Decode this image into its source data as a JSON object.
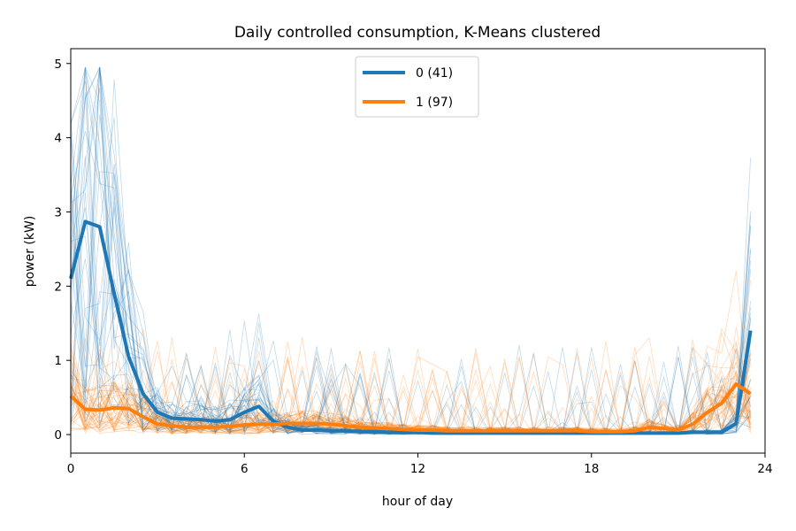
{
  "chart_data": {
    "type": "line",
    "title": "Daily controlled consumption, K-Means clustered",
    "xlabel": "hour of day",
    "ylabel": "power (kW)",
    "xlim": [
      0,
      24
    ],
    "ylim": [
      -0.25,
      5.2
    ],
    "xticks": [
      0,
      6,
      12,
      18,
      24
    ],
    "xtick_labels": [
      "0",
      "6",
      "12",
      "18",
      "24"
    ],
    "yticks": [
      0,
      1,
      2,
      3,
      4,
      5
    ],
    "ytick_labels": [
      "0",
      "1",
      "2",
      "3",
      "4",
      "5"
    ],
    "grid": false,
    "legend_position": "top-center",
    "colors": {
      "cluster_0": "#1f77b4",
      "cluster_1": "#ff7f0e"
    },
    "x": [
      0,
      0.5,
      1,
      1.5,
      2,
      2.5,
      3,
      3.5,
      4,
      4.5,
      5,
      5.5,
      6,
      6.5,
      7,
      7.5,
      8,
      8.5,
      9,
      9.5,
      10,
      10.5,
      11,
      11.5,
      12,
      12.5,
      13,
      13.5,
      14,
      14.5,
      15,
      15.5,
      16,
      16.5,
      17,
      17.5,
      18,
      18.5,
      19,
      19.5,
      20,
      20.5,
      21,
      21.5,
      22,
      22.5,
      23,
      23.5
    ],
    "series": [
      {
        "name": "0 (41)",
        "color": "#1f77b4",
        "values": [
          2.1,
          2.87,
          2.8,
          1.9,
          1.05,
          0.55,
          0.3,
          0.22,
          0.21,
          0.2,
          0.18,
          0.2,
          0.3,
          0.38,
          0.18,
          0.1,
          0.06,
          0.06,
          0.05,
          0.05,
          0.04,
          0.04,
          0.03,
          0.03,
          0.03,
          0.02,
          0.02,
          0.02,
          0.02,
          0.02,
          0.02,
          0.02,
          0.02,
          0.02,
          0.02,
          0.02,
          0.02,
          0.02,
          0.02,
          0.02,
          0.02,
          0.02,
          0.02,
          0.03,
          0.03,
          0.03,
          0.15,
          1.4
        ]
      },
      {
        "name": "1 (97)",
        "color": "#ff7f0e",
        "values": [
          0.52,
          0.34,
          0.33,
          0.36,
          0.35,
          0.24,
          0.14,
          0.12,
          0.1,
          0.1,
          0.1,
          0.11,
          0.13,
          0.14,
          0.14,
          0.15,
          0.15,
          0.15,
          0.14,
          0.12,
          0.1,
          0.09,
          0.08,
          0.07,
          0.06,
          0.06,
          0.05,
          0.05,
          0.05,
          0.05,
          0.05,
          0.05,
          0.05,
          0.05,
          0.05,
          0.05,
          0.04,
          0.04,
          0.04,
          0.05,
          0.1,
          0.08,
          0.06,
          0.14,
          0.3,
          0.42,
          0.68,
          0.55
        ]
      }
    ]
  }
}
